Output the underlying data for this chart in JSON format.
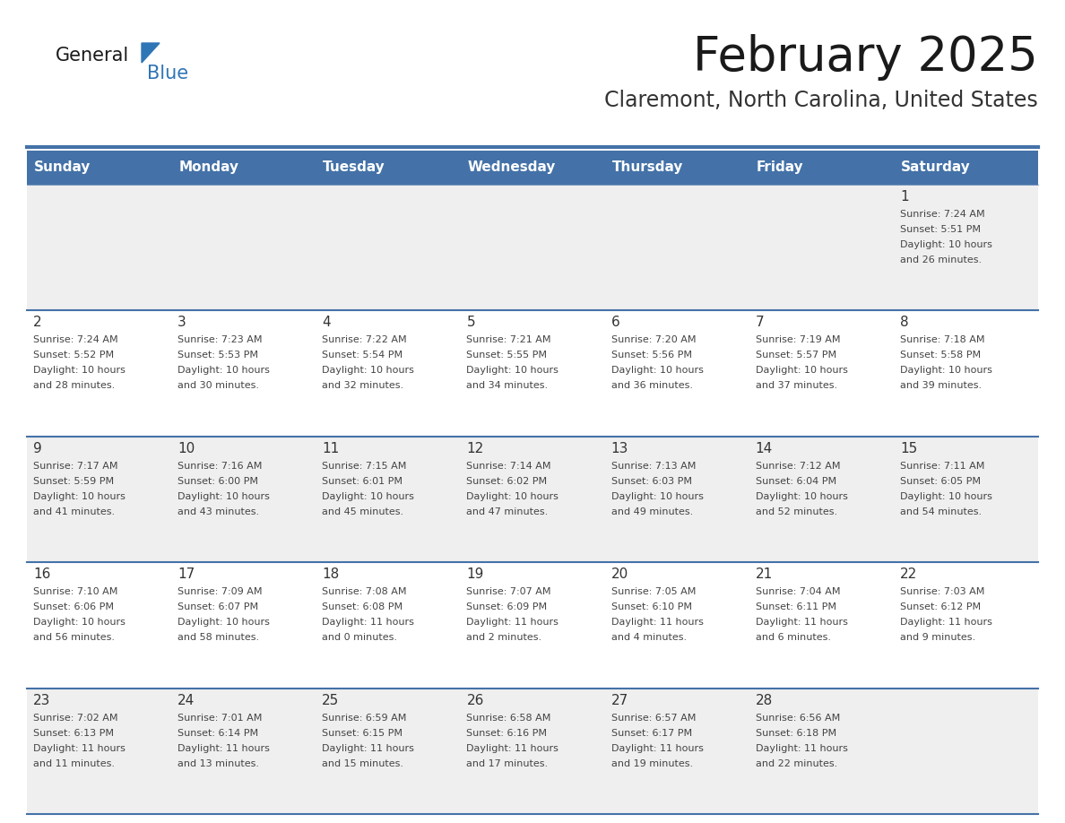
{
  "title": "February 2025",
  "subtitle": "Claremont, North Carolina, United States",
  "header_bg": "#4472A8",
  "header_text": "#FFFFFF",
  "row_bg_odd": "#EFEFEF",
  "row_bg_even": "#FFFFFF",
  "cell_border_color": "#4472A8",
  "day_headers": [
    "Sunday",
    "Monday",
    "Tuesday",
    "Wednesday",
    "Thursday",
    "Friday",
    "Saturday"
  ],
  "title_color": "#1a1a1a",
  "subtitle_color": "#333333",
  "day_number_color": "#333333",
  "info_color": "#444444",
  "logo_general_color": "#1a1a1a",
  "logo_blue_color": "#2E75B6",
  "logo_triangle_color": "#2E75B6",
  "calendar_data": [
    [
      null,
      null,
      null,
      null,
      null,
      null,
      {
        "day": 1,
        "sunrise": "7:24 AM",
        "sunset": "5:51 PM",
        "daylight": "10 hours and 26 minutes."
      }
    ],
    [
      {
        "day": 2,
        "sunrise": "7:24 AM",
        "sunset": "5:52 PM",
        "daylight": "10 hours and 28 minutes."
      },
      {
        "day": 3,
        "sunrise": "7:23 AM",
        "sunset": "5:53 PM",
        "daylight": "10 hours and 30 minutes."
      },
      {
        "day": 4,
        "sunrise": "7:22 AM",
        "sunset": "5:54 PM",
        "daylight": "10 hours and 32 minutes."
      },
      {
        "day": 5,
        "sunrise": "7:21 AM",
        "sunset": "5:55 PM",
        "daylight": "10 hours and 34 minutes."
      },
      {
        "day": 6,
        "sunrise": "7:20 AM",
        "sunset": "5:56 PM",
        "daylight": "10 hours and 36 minutes."
      },
      {
        "day": 7,
        "sunrise": "7:19 AM",
        "sunset": "5:57 PM",
        "daylight": "10 hours and 37 minutes."
      },
      {
        "day": 8,
        "sunrise": "7:18 AM",
        "sunset": "5:58 PM",
        "daylight": "10 hours and 39 minutes."
      }
    ],
    [
      {
        "day": 9,
        "sunrise": "7:17 AM",
        "sunset": "5:59 PM",
        "daylight": "10 hours and 41 minutes."
      },
      {
        "day": 10,
        "sunrise": "7:16 AM",
        "sunset": "6:00 PM",
        "daylight": "10 hours and 43 minutes."
      },
      {
        "day": 11,
        "sunrise": "7:15 AM",
        "sunset": "6:01 PM",
        "daylight": "10 hours and 45 minutes."
      },
      {
        "day": 12,
        "sunrise": "7:14 AM",
        "sunset": "6:02 PM",
        "daylight": "10 hours and 47 minutes."
      },
      {
        "day": 13,
        "sunrise": "7:13 AM",
        "sunset": "6:03 PM",
        "daylight": "10 hours and 49 minutes."
      },
      {
        "day": 14,
        "sunrise": "7:12 AM",
        "sunset": "6:04 PM",
        "daylight": "10 hours and 52 minutes."
      },
      {
        "day": 15,
        "sunrise": "7:11 AM",
        "sunset": "6:05 PM",
        "daylight": "10 hours and 54 minutes."
      }
    ],
    [
      {
        "day": 16,
        "sunrise": "7:10 AM",
        "sunset": "6:06 PM",
        "daylight": "10 hours and 56 minutes."
      },
      {
        "day": 17,
        "sunrise": "7:09 AM",
        "sunset": "6:07 PM",
        "daylight": "10 hours and 58 minutes."
      },
      {
        "day": 18,
        "sunrise": "7:08 AM",
        "sunset": "6:08 PM",
        "daylight": "11 hours and 0 minutes."
      },
      {
        "day": 19,
        "sunrise": "7:07 AM",
        "sunset": "6:09 PM",
        "daylight": "11 hours and 2 minutes."
      },
      {
        "day": 20,
        "sunrise": "7:05 AM",
        "sunset": "6:10 PM",
        "daylight": "11 hours and 4 minutes."
      },
      {
        "day": 21,
        "sunrise": "7:04 AM",
        "sunset": "6:11 PM",
        "daylight": "11 hours and 6 minutes."
      },
      {
        "day": 22,
        "sunrise": "7:03 AM",
        "sunset": "6:12 PM",
        "daylight": "11 hours and 9 minutes."
      }
    ],
    [
      {
        "day": 23,
        "sunrise": "7:02 AM",
        "sunset": "6:13 PM",
        "daylight": "11 hours and 11 minutes."
      },
      {
        "day": 24,
        "sunrise": "7:01 AM",
        "sunset": "6:14 PM",
        "daylight": "11 hours and 13 minutes."
      },
      {
        "day": 25,
        "sunrise": "6:59 AM",
        "sunset": "6:15 PM",
        "daylight": "11 hours and 15 minutes."
      },
      {
        "day": 26,
        "sunrise": "6:58 AM",
        "sunset": "6:16 PM",
        "daylight": "11 hours and 17 minutes."
      },
      {
        "day": 27,
        "sunrise": "6:57 AM",
        "sunset": "6:17 PM",
        "daylight": "11 hours and 19 minutes."
      },
      {
        "day": 28,
        "sunrise": "6:56 AM",
        "sunset": "6:18 PM",
        "daylight": "11 hours and 22 minutes."
      },
      null
    ]
  ]
}
